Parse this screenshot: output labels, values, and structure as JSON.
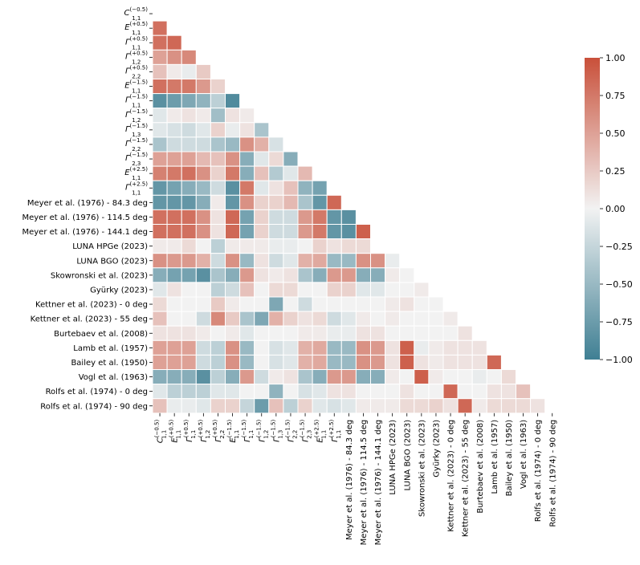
{
  "chart_data": {
    "type": "heatmap",
    "subtype": "lower-triangular correlation matrix",
    "labels": [
      {
        "base": "C",
        "sub": "1,1",
        "sup": "(−0.5)"
      },
      {
        "base": "E",
        "sub": "1,1",
        "sup": "(+0.5)"
      },
      {
        "base": "Γ",
        "sub": "1,1",
        "sup": "(+0.5)"
      },
      {
        "base": "Γ",
        "sub": "1,2",
        "sup": "(+0.5)"
      },
      {
        "base": "Γ",
        "sub": "2,2",
        "sup": "(+0.5)"
      },
      {
        "base": "E",
        "sub": "1,1",
        "sup": "(−1.5)"
      },
      {
        "base": "Γ",
        "sub": "1,1",
        "sup": "(−1.5)"
      },
      {
        "base": "Γ",
        "sub": "1,2",
        "sup": "(−1.5)"
      },
      {
        "base": "Γ",
        "sub": "1,3",
        "sup": "(−1.5)"
      },
      {
        "base": "Γ",
        "sub": "2,2",
        "sup": "(−1.5)"
      },
      {
        "base": "Γ",
        "sub": "2,3",
        "sup": "(−1.5)"
      },
      {
        "base": "E",
        "sub": "1,1",
        "sup": "(+2.5)"
      },
      {
        "base": "Γ",
        "sub": "1,1",
        "sup": "(+2.5)"
      },
      {
        "text": "Meyer et al. (1976) - 84.3 deg"
      },
      {
        "text": "Meyer et al. (1976) - 114.5 deg"
      },
      {
        "text": "Meyer et al. (1976) - 144.1 deg"
      },
      {
        "text": "LUNA HPGe (2023)"
      },
      {
        "text": "LUNA BGO (2023)"
      },
      {
        "text": "Skowronski et al. (2023)"
      },
      {
        "text": "Gyürky (2023)"
      },
      {
        "text": "Kettner et al. (2023) - 0 deg"
      },
      {
        "text": "Kettner et al. (2023) - 55 deg"
      },
      {
        "text": "Burtebaev et al. (2008)"
      },
      {
        "text": "Lamb et al. (1957)"
      },
      {
        "text": "Bailey et al. (1950)"
      },
      {
        "text": "Vogl et al. (1963)"
      },
      {
        "text": "Rolfs et al. (1974) - 0 deg"
      },
      {
        "text": "Rolfs et al. (1974) - 90 deg"
      }
    ],
    "matrix": [
      [],
      [
        0.8
      ],
      [
        0.8,
        0.85
      ],
      [
        0.5,
        0.6,
        0.65
      ],
      [
        0.3,
        0.05,
        -0.05,
        0.25
      ],
      [
        0.8,
        0.75,
        0.75,
        0.55,
        0.2
      ],
      [
        -0.85,
        -0.75,
        -0.65,
        -0.55,
        -0.3,
        -0.9
      ],
      [
        -0.1,
        0.05,
        0.1,
        0.05,
        -0.45,
        0.1,
        0.05
      ],
      [
        -0.1,
        -0.15,
        -0.2,
        -0.1,
        0.2,
        -0.05,
        0.1,
        -0.4
      ],
      [
        -0.4,
        -0.2,
        -0.2,
        -0.2,
        -0.4,
        -0.5,
        0.6,
        0.4,
        -0.15
      ],
      [
        0.5,
        0.5,
        0.5,
        0.35,
        0.3,
        0.6,
        -0.6,
        -0.1,
        0.15,
        -0.6
      ],
      [
        0.7,
        0.75,
        0.8,
        0.6,
        0.2,
        0.75,
        -0.6,
        0.3,
        -0.35,
        -0.1,
        0.35
      ],
      [
        -0.8,
        -0.7,
        -0.6,
        -0.5,
        -0.2,
        -0.85,
        0.75,
        -0.1,
        0.1,
        0.3,
        -0.55,
        -0.7
      ],
      [
        -0.8,
        -0.8,
        -0.8,
        -0.6,
        0.05,
        -0.8,
        0.6,
        0.2,
        0.2,
        0.35,
        -0.4,
        -0.8,
        0.85
      ],
      [
        0.8,
        0.8,
        0.8,
        0.6,
        0.1,
        0.85,
        -0.7,
        0.2,
        -0.2,
        -0.2,
        0.55,
        0.75,
        -0.8,
        -0.85
      ],
      [
        0.8,
        0.8,
        0.8,
        0.6,
        0.1,
        0.85,
        -0.7,
        0.2,
        -0.2,
        -0.2,
        0.55,
        0.75,
        -0.8,
        -0.85,
        0.9
      ],
      [
        0.05,
        0.05,
        0.15,
        0.0,
        -0.3,
        0.05,
        0.05,
        0.05,
        -0.05,
        -0.05,
        0.0,
        0.2,
        0.1,
        0.15,
        0.15
      ],
      [
        0.6,
        0.55,
        0.55,
        0.4,
        -0.2,
        0.6,
        -0.5,
        0.1,
        -0.2,
        -0.1,
        0.4,
        0.45,
        -0.5,
        -0.5,
        0.6,
        0.6,
        -0.05
      ],
      [
        -0.6,
        -0.7,
        -0.7,
        -0.85,
        -0.4,
        -0.6,
        0.55,
        0.1,
        0.05,
        0.1,
        -0.4,
        -0.6,
        0.55,
        0.55,
        -0.6,
        -0.6,
        0.05,
        0.0
      ],
      [
        -0.1,
        0.1,
        0.0,
        0.0,
        -0.3,
        -0.2,
        0.3,
        0.0,
        0.15,
        0.15,
        0.0,
        0.0,
        0.2,
        0.2,
        -0.1,
        -0.1,
        0.0,
        0.0,
        0.05
      ],
      [
        0.15,
        0.0,
        0.0,
        0.0,
        0.25,
        0.05,
        0.0,
        0.0,
        -0.65,
        0.0,
        -0.2,
        0.0,
        0.0,
        0.0,
        0.0,
        0.0,
        0.05,
        0.1,
        0.0,
        0.0
      ],
      [
        0.3,
        0.0,
        0.0,
        -0.2,
        0.65,
        0.25,
        -0.4,
        -0.65,
        0.4,
        0.2,
        0.1,
        0.15,
        -0.2,
        -0.1,
        0.05,
        0.0,
        0.05,
        0.0,
        0.0,
        0.0,
        0.05
      ],
      [
        0.1,
        0.1,
        0.1,
        0.05,
        0.0,
        0.05,
        -0.1,
        0.0,
        0.0,
        0.0,
        0.05,
        0.05,
        -0.05,
        -0.05,
        0.1,
        0.1,
        0.0,
        0.0,
        0.0,
        0.0,
        0.0,
        0.1
      ],
      [
        0.5,
        0.5,
        0.5,
        -0.2,
        -0.3,
        0.6,
        -0.5,
        0.0,
        -0.15,
        -0.1,
        0.4,
        0.45,
        -0.5,
        -0.5,
        0.6,
        0.55,
        0.1,
        0.9,
        -0.05,
        0.05,
        0.1,
        0.1,
        0.1
      ],
      [
        0.5,
        0.5,
        0.5,
        -0.2,
        -0.3,
        0.6,
        -0.5,
        0.0,
        -0.15,
        -0.1,
        0.4,
        0.45,
        -0.5,
        -0.5,
        0.6,
        0.55,
        0.1,
        0.9,
        0.1,
        0.05,
        0.1,
        0.1,
        0.1,
        0.85
      ],
      [
        -0.6,
        -0.6,
        -0.6,
        -0.85,
        -0.3,
        -0.6,
        0.55,
        -0.2,
        0.05,
        0.1,
        -0.4,
        -0.6,
        0.55,
        0.55,
        -0.6,
        -0.6,
        0.05,
        0.0,
        0.9,
        0.05,
        0.0,
        0.0,
        -0.05,
        0.0,
        0.15
      ],
      [
        -0.1,
        -0.3,
        -0.3,
        -0.3,
        -0.1,
        -0.1,
        0.0,
        0.0,
        -0.55,
        0.0,
        -0.15,
        -0.1,
        0.1,
        0.1,
        0.0,
        0.0,
        0.0,
        0.1,
        0.0,
        0.0,
        0.85,
        0.0,
        0.0,
        0.1,
        0.1,
        0.3
      ],
      [
        0.3,
        -0.05,
        -0.05,
        -0.1,
        0.2,
        0.2,
        -0.25,
        -0.75,
        0.3,
        -0.3,
        0.2,
        -0.1,
        -0.15,
        -0.1,
        0.05,
        0.05,
        0.05,
        0.15,
        0.15,
        0.2,
        0.1,
        0.85,
        0.05,
        0.15,
        0.15,
        0.15,
        0.1
      ]
    ],
    "colorbar": {
      "range": [
        -1.0,
        1.0
      ],
      "ticks": [
        "−1.00",
        "−0.75",
        "−0.50",
        "−0.25",
        "0.00",
        "0.25",
        "0.50",
        "0.75",
        "1.00"
      ],
      "negative_color": "#3f7f93",
      "center_color": "#f2f2f2",
      "positive_color": "#c9503a"
    },
    "title": "",
    "xlabel": "",
    "ylabel": ""
  }
}
